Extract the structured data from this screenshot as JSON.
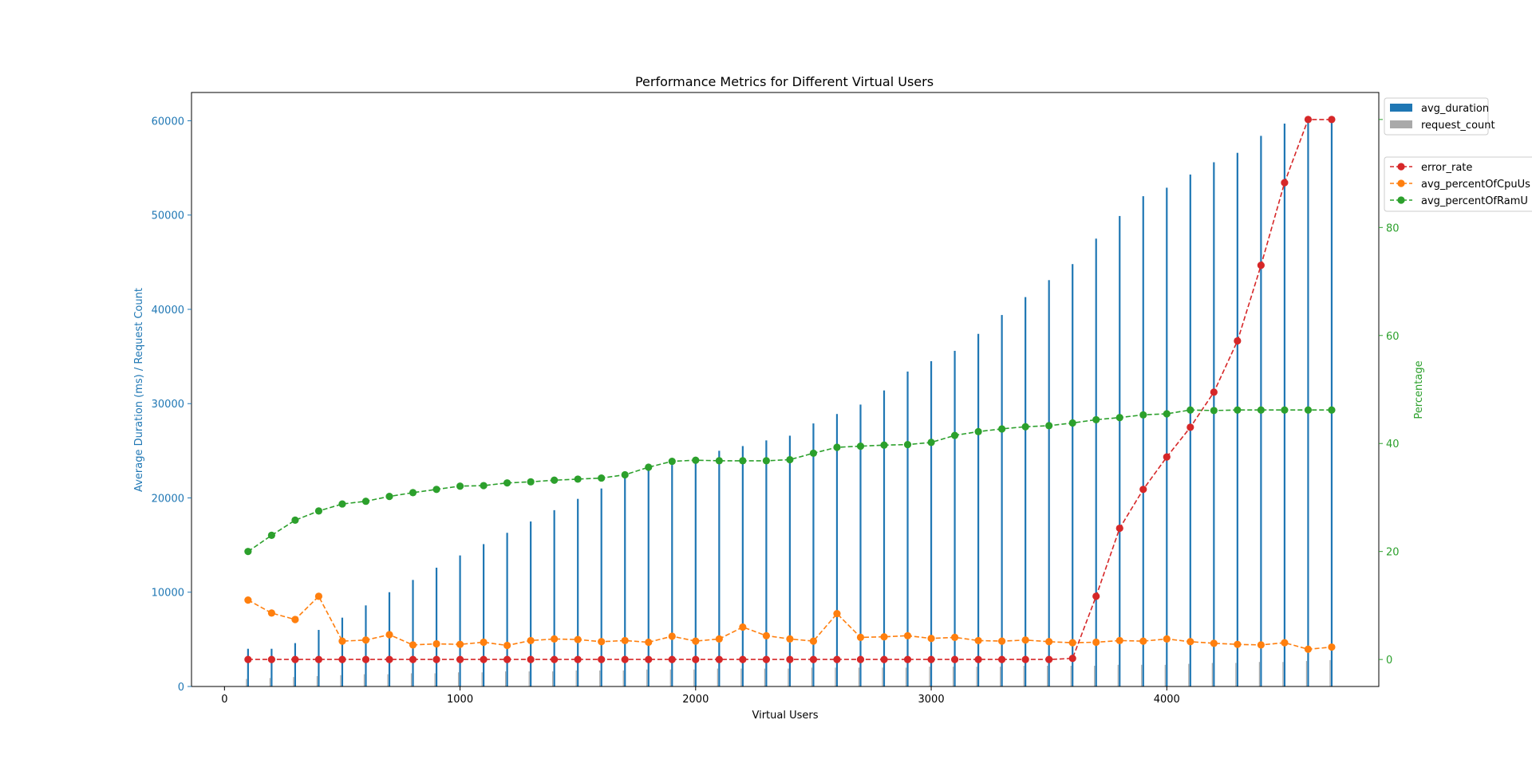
{
  "chart_data": {
    "type": "bar+line",
    "title": "Performance Metrics for Different Virtual Users",
    "xlabel": "Virtual Users",
    "ylabel_left": "Average Duration (ms) / Request Count",
    "ylabel_right": "Percentage",
    "xlim": [
      -140,
      4900
    ],
    "ylim_left": [
      0,
      63000
    ],
    "ylim_right": [
      -5,
      105
    ],
    "x_ticks": [
      0,
      1000,
      2000,
      3000,
      4000
    ],
    "y_left_ticks": [
      0,
      10000,
      20000,
      30000,
      40000,
      50000,
      60000
    ],
    "y_right_ticks": [
      0,
      20,
      40,
      60,
      80,
      100
    ],
    "x": [
      100,
      200,
      300,
      400,
      500,
      600,
      700,
      800,
      900,
      1000,
      1100,
      1200,
      1300,
      1400,
      1500,
      1600,
      1700,
      1800,
      1900,
      2000,
      2100,
      2200,
      2300,
      2400,
      2500,
      2600,
      2700,
      2800,
      2900,
      3000,
      3100,
      3200,
      3300,
      3400,
      3500,
      3600,
      3700,
      3800,
      3900,
      4000,
      4100,
      4200,
      4300,
      4400,
      4500,
      4600,
      4700
    ],
    "bar_series": [
      {
        "name": "avg_duration",
        "color": "#1f77b4",
        "values": [
          4000,
          4000,
          4600,
          6000,
          7300,
          8600,
          10000,
          11300,
          12600,
          13900,
          15100,
          16300,
          17500,
          18700,
          19900,
          21000,
          22200,
          23300,
          23500,
          23900,
          25000,
          25500,
          26100,
          26600,
          27900,
          28900,
          29900,
          31400,
          33400,
          34500,
          35600,
          37400,
          39400,
          41300,
          43100,
          44800,
          47500,
          49900,
          52000,
          52900,
          54300,
          55600,
          56600,
          58400,
          59700,
          60000,
          60100
        ]
      },
      {
        "name": "request_count",
        "color": "#a9a9a9",
        "values": [
          800,
          900,
          1000,
          1100,
          1200,
          1300,
          1300,
          1400,
          1400,
          1500,
          1500,
          1600,
          1600,
          1600,
          1700,
          1700,
          1700,
          1800,
          1800,
          1800,
          1900,
          1900,
          1900,
          1900,
          2000,
          2000,
          2000,
          2000,
          2000,
          2100,
          2100,
          2100,
          2100,
          2200,
          2200,
          2200,
          2200,
          2300,
          2300,
          2300,
          2400,
          2500,
          2500,
          2600,
          2600,
          2700,
          2800
        ]
      }
    ],
    "line_series": [
      {
        "name": "error_rate",
        "color": "#d62728",
        "values": [
          0,
          0,
          0,
          0,
          0,
          0,
          0,
          0,
          0,
          0,
          0,
          0,
          0,
          0,
          0,
          0,
          0,
          0,
          0,
          0,
          0,
          0,
          0,
          0,
          0,
          0,
          0,
          0,
          0,
          0,
          0,
          0,
          0,
          0,
          0,
          0.2,
          11.7,
          24.3,
          31.5,
          37.5,
          43,
          49.5,
          59,
          73,
          88.3,
          100,
          100
        ]
      },
      {
        "name": "avg_percentOfCpuUs",
        "color": "#ff7f0e",
        "values": [
          11,
          8.6,
          7.4,
          11.7,
          3.4,
          3.6,
          4.6,
          2.7,
          2.9,
          2.8,
          3.2,
          2.6,
          3.5,
          3.8,
          3.7,
          3.3,
          3.5,
          3.2,
          4.3,
          3.4,
          3.8,
          6,
          4.4,
          3.8,
          3.4,
          8.5,
          4.1,
          4.2,
          4.4,
          3.9,
          4.1,
          3.5,
          3.4,
          3.6,
          3.3,
          3.1,
          3.2,
          3.5,
          3.4,
          3.8,
          3.3,
          3,
          2.8,
          2.7,
          3.1,
          1.9,
          2.3
        ]
      },
      {
        "name": "avg_percentOfRamU",
        "color": "#2ca02c",
        "values": [
          20,
          23,
          25.8,
          27.5,
          28.8,
          29.3,
          30.2,
          30.9,
          31.5,
          32.1,
          32.2,
          32.7,
          32.9,
          33.2,
          33.4,
          33.6,
          34.2,
          35.6,
          36.7,
          36.9,
          36.8,
          36.8,
          36.8,
          37,
          38.2,
          39.3,
          39.5,
          39.7,
          39.8,
          40.2,
          41.5,
          42.2,
          42.7,
          43.1,
          43.3,
          43.8,
          44.4,
          44.8,
          45.3,
          45.5,
          46.2,
          46.1,
          46.2,
          46.2,
          46.2,
          46.2,
          46.2
        ]
      }
    ],
    "legends": [
      {
        "placement": "top-right-outside",
        "items": [
          "avg_duration",
          "request_count"
        ]
      },
      {
        "placement": "right-outside",
        "items": [
          "error_rate",
          "avg_percentOfCpuUs",
          "avg_percentOfRamU"
        ]
      }
    ],
    "left_axis_color": "#1f77b4",
    "right_axis_color": "#2ca02c",
    "grid": false
  }
}
